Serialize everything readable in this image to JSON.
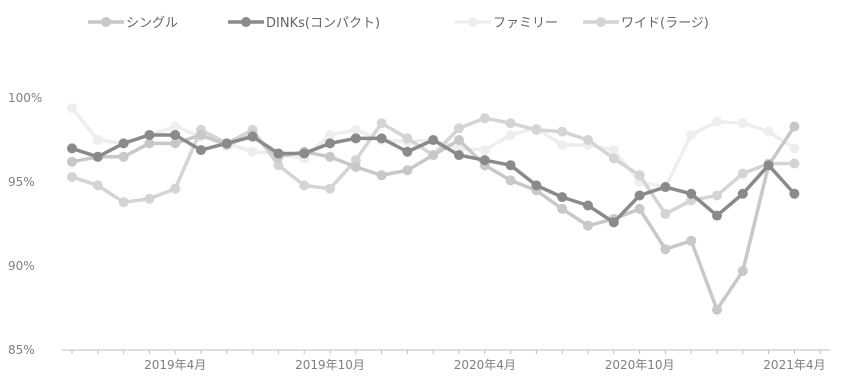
{
  "chart_data": {
    "type": "line",
    "x": [
      "2018/12",
      "2019/1",
      "2019/2",
      "2019/3",
      "2019/4",
      "2019/5",
      "2019/6",
      "2019/7",
      "2019/8",
      "2019/9",
      "2019/10",
      "2019/11",
      "2019/12",
      "2020/1",
      "2020/2",
      "2020/3",
      "2020/4",
      "2020/5",
      "2020/6",
      "2020/7",
      "2020/8",
      "2020/9",
      "2020/10",
      "2020/11",
      "2020/12",
      "2021/1",
      "2021/2",
      "2021/3",
      "2021/4",
      "2021/5"
    ],
    "xtick_labels": [
      {
        "index": 4,
        "label": "2019年4月"
      },
      {
        "index": 10,
        "label": "2019年10月"
      },
      {
        "index": 16,
        "label": "2020年4月"
      },
      {
        "index": 22,
        "label": "2020年10月"
      },
      {
        "index": 28,
        "label": "2021年4月"
      }
    ],
    "ylim": [
      85,
      100
    ],
    "yticks": [
      85,
      90,
      95,
      100
    ],
    "ytick_labels": [
      "85%",
      "90%",
      "95%",
      "100%"
    ],
    "grid": false,
    "legend_position": "top",
    "series": [
      {
        "name": "シングル",
        "color": "#c8c8c8",
        "values": [
          96.2,
          96.5,
          96.5,
          97.3,
          97.3,
          97.8,
          97.2,
          97.8,
          96.5,
          96.8,
          96.5,
          95.9,
          95.4,
          95.7,
          96.6,
          97.5,
          96.0,
          95.1,
          94.5,
          93.4,
          92.4,
          92.8,
          93.4,
          91.0,
          91.5,
          87.4,
          89.7,
          96.0,
          98.3,
          null
        ]
      },
      {
        "name": "DINKs(コンパクト)",
        "color": "#8a8a8a",
        "values": [
          97.0,
          96.5,
          97.3,
          97.8,
          97.8,
          96.9,
          97.3,
          97.7,
          96.7,
          96.7,
          97.3,
          97.6,
          97.6,
          96.8,
          97.5,
          96.6,
          96.3,
          96.0,
          94.8,
          94.1,
          93.6,
          92.6,
          94.2,
          94.7,
          94.3,
          93.0,
          94.3,
          96.0,
          94.3,
          null
        ]
      },
      {
        "name": "ファミリー",
        "color": "#eeeeee",
        "values": [
          99.4,
          97.5,
          97.3,
          97.8,
          98.3,
          97.7,
          97.3,
          96.8,
          96.7,
          96.4,
          97.8,
          98.1,
          97.5,
          97.4,
          97.5,
          97.0,
          96.9,
          97.8,
          98.2,
          97.2,
          97.2,
          96.9,
          95.0,
          94.7,
          97.8,
          98.6,
          98.5,
          98.0,
          97.0,
          null
        ]
      },
      {
        "name": "ワイド(ラージ)",
        "color": "#d4d4d4",
        "values": [
          95.3,
          94.8,
          93.8,
          94.0,
          94.6,
          98.1,
          97.3,
          98.1,
          96.0,
          94.8,
          94.6,
          96.3,
          98.5,
          97.6,
          96.6,
          98.2,
          98.8,
          98.5,
          98.1,
          98.0,
          97.5,
          96.4,
          95.4,
          93.1,
          93.9,
          94.2,
          95.5,
          96.1,
          96.1,
          null
        ]
      }
    ]
  }
}
